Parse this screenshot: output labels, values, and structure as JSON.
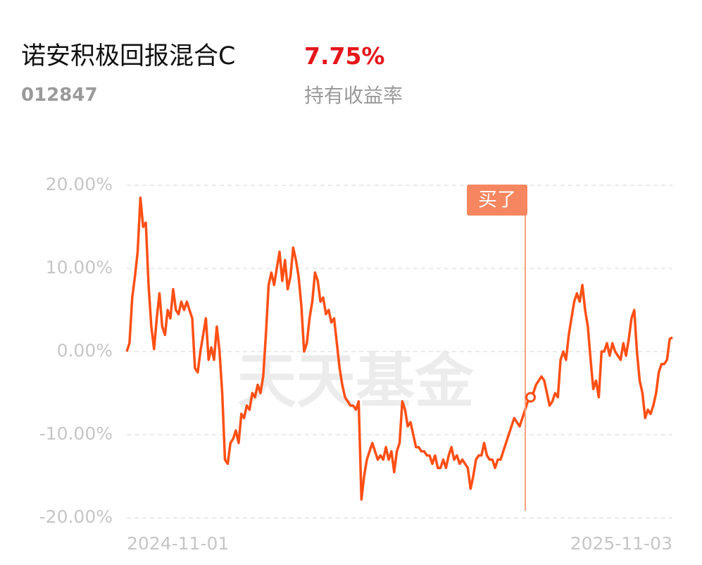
{
  "header": {
    "title": "诺安积极回报混合C",
    "return": "7.75%",
    "code": "012847",
    "return_caption": "持有收益率"
  },
  "chart_data": {
    "type": "line",
    "watermark": "天天基金",
    "annotation": "买了",
    "color": "#ff4f14",
    "grid": true,
    "ylim": [
      -20,
      20
    ],
    "yticks": [
      {
        "value": 20,
        "label": "20.00%"
      },
      {
        "value": 10,
        "label": "10.00%"
      },
      {
        "value": 0,
        "label": "0.00%"
      },
      {
        "value": -10,
        "label": "-10.00%"
      },
      {
        "value": -20,
        "label": "-20.00%"
      }
    ],
    "categories": [
      "2024-11-01",
      null,
      null,
      null,
      null,
      null,
      null,
      null,
      null,
      null,
      null,
      null,
      null,
      null,
      null,
      null,
      null,
      null,
      null,
      null,
      null,
      null,
      null,
      null,
      null,
      null,
      null,
      null,
      null,
      null,
      null,
      null,
      null,
      null,
      null,
      null,
      null,
      null,
      null,
      null,
      null,
      null,
      null,
      null,
      null,
      null,
      null,
      null,
      null,
      null,
      null,
      null,
      null,
      null,
      null,
      null,
      null,
      null,
      null,
      null,
      null,
      null,
      null,
      null,
      null,
      null,
      null,
      null,
      null,
      null,
      null,
      null,
      null,
      null,
      null,
      null,
      null,
      null,
      null,
      null,
      null,
      null,
      null,
      null,
      null,
      null,
      null,
      null,
      null,
      null,
      null,
      null,
      null,
      null,
      null,
      null,
      null,
      null,
      null,
      null,
      null,
      null,
      null,
      null,
      null,
      null,
      null,
      null,
      null,
      null,
      null,
      null,
      null,
      null,
      null,
      null,
      null,
      null,
      null,
      null,
      null,
      null,
      null,
      null,
      null,
      null,
      null,
      null,
      null,
      null,
      null,
      null,
      null,
      null,
      null,
      null,
      null,
      null,
      null,
      null,
      null,
      null,
      null,
      null,
      null,
      null,
      null,
      null,
      null,
      null,
      null,
      null,
      null,
      null,
      null,
      null,
      null,
      null,
      null,
      null,
      null,
      null,
      null,
      null,
      null,
      null,
      null,
      null,
      null,
      null,
      null,
      null,
      null,
      null,
      null,
      null,
      null,
      null,
      null,
      null,
      null,
      null,
      null,
      null,
      null,
      null,
      null,
      null,
      null,
      null,
      null,
      null,
      null,
      null,
      null,
      null,
      null,
      null,
      null,
      null,
      "2025-11-03"
    ],
    "values": [
      0,
      1,
      6.5,
      9,
      12,
      18.5,
      15,
      15.5,
      8,
      3,
      0.3,
      4,
      7,
      3,
      2,
      5,
      4,
      7.5,
      5,
      4.5,
      6,
      5,
      6,
      5,
      4,
      -2,
      -2.5,
      0,
      2,
      4,
      -1,
      0.5,
      -1,
      3,
      0,
      -5,
      -13,
      -13.5,
      -11,
      -10.5,
      -9.5,
      -11,
      -7.5,
      -8,
      -6.5,
      -7,
      -5,
      -5.5,
      -4,
      -5,
      -3,
      2,
      8,
      9.5,
      8,
      10,
      12,
      8.5,
      11,
      7.5,
      9,
      12.5,
      11,
      9,
      5.5,
      0,
      1,
      4,
      6,
      9.5,
      8.5,
      6,
      6.5,
      4.5,
      5,
      3.5,
      4,
      1,
      -2,
      -4,
      -5.5,
      -6,
      -6.5,
      -6.5,
      -7,
      -6,
      -17.8,
      -15,
      -13,
      -12,
      -11,
      -12,
      -13,
      -12.5,
      -13,
      -11.5,
      -13,
      -12,
      -14.5,
      -12,
      -11,
      -6,
      -7,
      -9,
      -8.5,
      -10,
      -11.5,
      -11.5,
      -12,
      -12,
      -12.5,
      -12.5,
      -13.5,
      -12.5,
      -14,
      -14,
      -13,
      -14,
      -12.5,
      -11.5,
      -13,
      -12.5,
      -13.5,
      -13,
      -13.5,
      -14,
      -16.5,
      -15,
      -13,
      -12.5,
      -12.5,
      -11,
      -12.5,
      -13,
      -13,
      -14,
      -13,
      -13,
      -12,
      -11,
      -10,
      -9,
      -8,
      -8.5,
      -9,
      -8,
      -7,
      -6,
      -5.5,
      -5,
      -4,
      -3.5,
      -3,
      -3.5,
      -5,
      -6.5,
      -6,
      -5,
      -5.5,
      -1,
      0,
      -1,
      2,
      4,
      6,
      7,
      6,
      8,
      5,
      3,
      -1,
      -4.5,
      -3.5,
      -5.5,
      0,
      0,
      1,
      -0.5,
      1,
      0,
      -0.5,
      -1,
      1,
      -0.5,
      1.5,
      4,
      5,
      0,
      -3.5,
      -5,
      -8,
      -7,
      -7.5,
      -6.5,
      -5,
      -2.5,
      -1.5,
      -1.5,
      -1,
      1.5,
      1.7
    ]
  }
}
